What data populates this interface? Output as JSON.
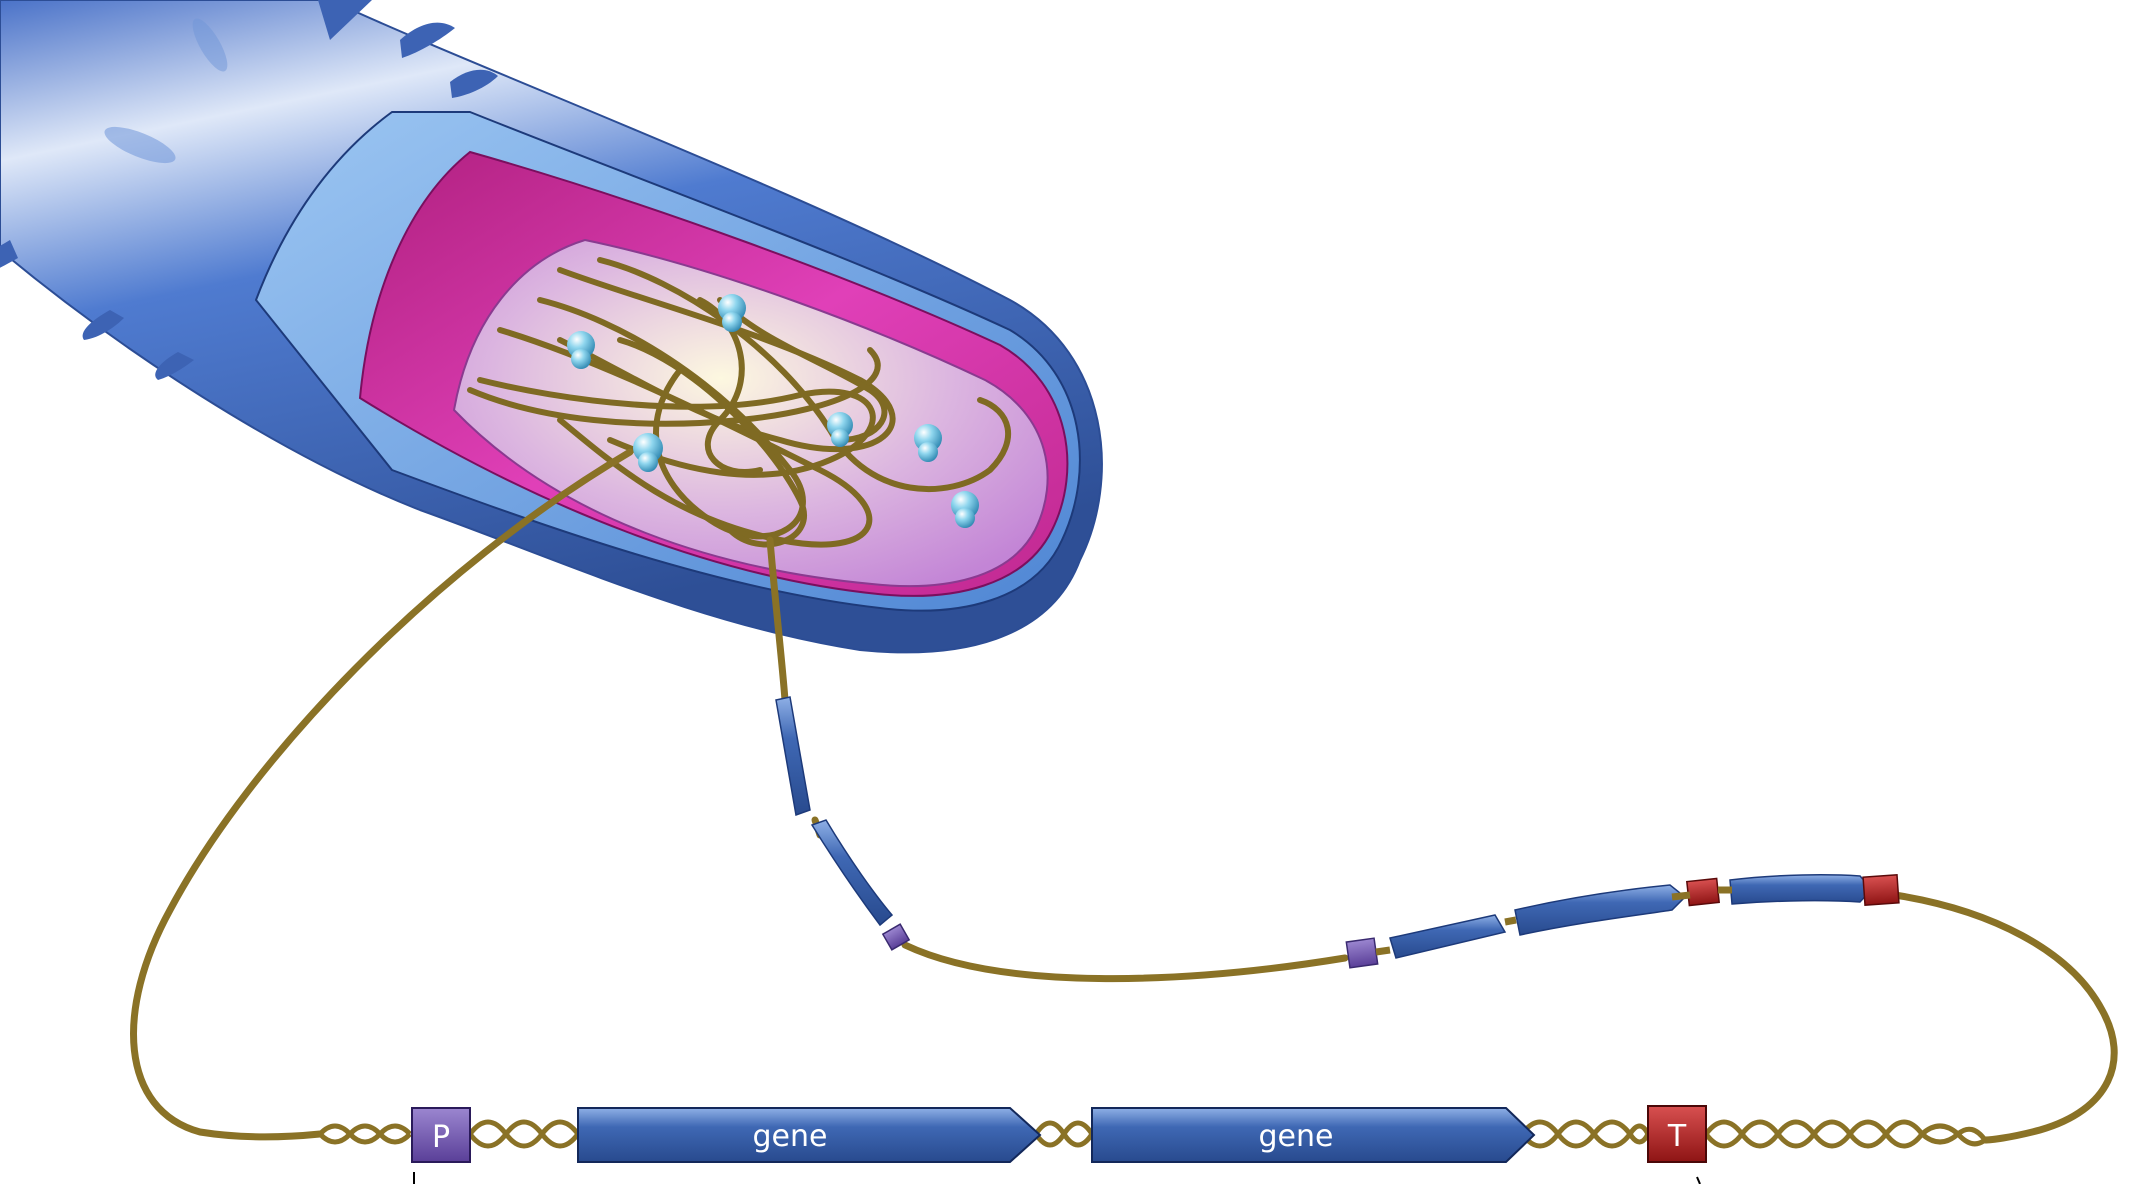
{
  "labels": {
    "promoter": "P",
    "terminator": "T",
    "gene_1": "gene",
    "gene_2": "gene"
  },
  "colors": {
    "dna": "#8a7226",
    "cell_body": "#3a5fb0",
    "cell_wall_light": "#6fa6e6",
    "membrane": "#d0339f",
    "cytoplasm": "#d8a8dc",
    "promoter": "#6a4fa8",
    "terminator": "#a51d1d",
    "gene": "#3b62ad",
    "ribosome": "#5cc0e0"
  }
}
